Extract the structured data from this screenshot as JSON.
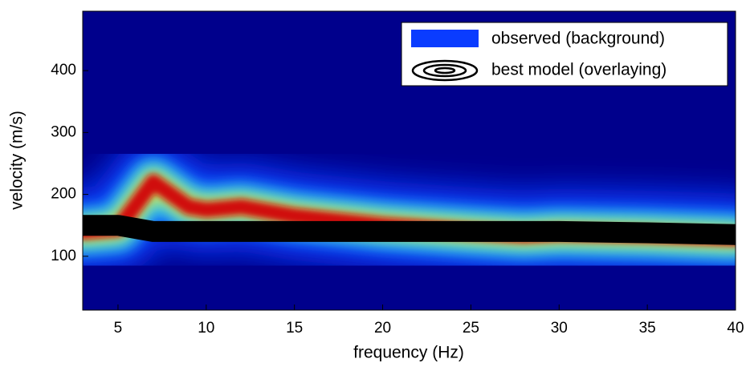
{
  "chart_data": {
    "type": "dispersion",
    "x_label": "frequency (Hz)",
    "y_label": "velocity (m/s)",
    "xlim": [
      3,
      40
    ],
    "ylim": [
      13,
      496
    ],
    "xticks": [
      5,
      10,
      15,
      20,
      25,
      30,
      35,
      40
    ],
    "yticks": [
      100,
      200,
      300,
      400
    ],
    "background": "#00008c",
    "legend": "upper right",
    "series": [
      {
        "name": "observed (background)",
        "color": "#0a3cff",
        "x": [
          3,
          5,
          7,
          9,
          10,
          12,
          15,
          20,
          25,
          28,
          30,
          35,
          40
        ],
        "values": [
          140,
          145,
          220,
          180,
          175,
          180,
          165,
          150,
          140,
          135,
          138,
          135,
          130
        ]
      },
      {
        "name": "best model (overlaying)",
        "color": "#000000",
        "x": [
          3,
          5,
          7,
          10,
          15,
          20,
          25,
          28,
          30,
          35,
          40
        ],
        "values": [
          150,
          150,
          140,
          140,
          140,
          140,
          140,
          140,
          140,
          138,
          135
        ]
      }
    ]
  }
}
